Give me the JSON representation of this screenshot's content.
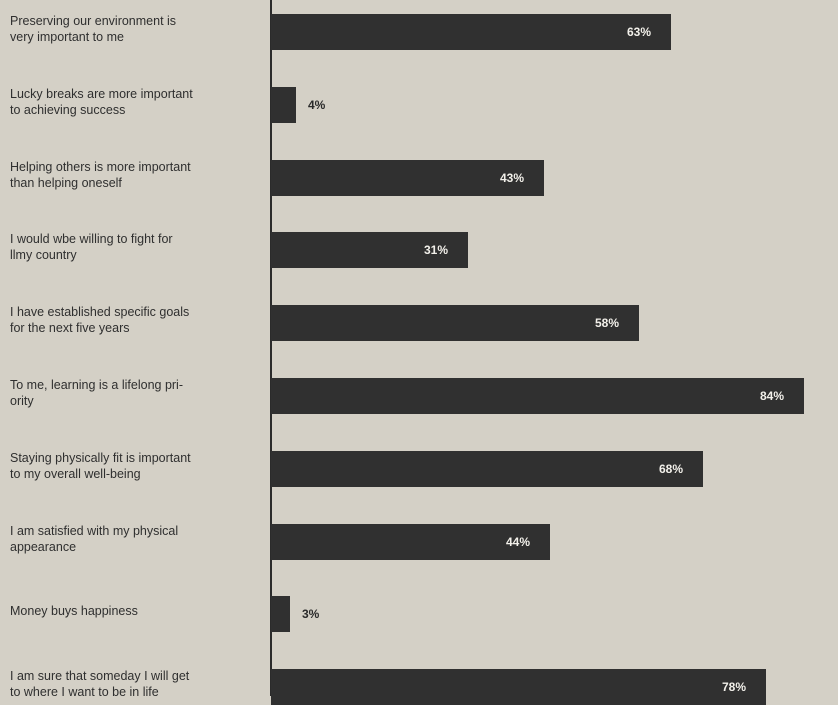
{
  "chart_data": {
    "type": "bar",
    "orientation": "horizontal",
    "unit": "%",
    "xlim": [
      0,
      100
    ],
    "bar_color": "#303030",
    "background_color": "#d4d0c6",
    "categories": [
      "Preserving our environment is very important to me",
      "Lucky breaks are more important to achieving success",
      "Helping others is more important than helping oneself",
      "I would wbe willing to fight for llmy country",
      "I have established specific goals for the next five years",
      "To me, learning is a lifelong pri-ority",
      "Staying physically fit is important to my overall well-being",
      "I am satisfied with my physical appearance",
      "Money buys happiness",
      "I am sure that someday I will get to where I want to be in life"
    ],
    "label_lines": [
      [
        "Preserving our environment is",
        "very important to me"
      ],
      [
        "Lucky breaks are more important",
        "to achieving success"
      ],
      [
        "Helping others is more important",
        "than helping oneself"
      ],
      [
        "I would wbe willing to fight for",
        "llmy country"
      ],
      [
        "I have established specific goals",
        "for the next five years"
      ],
      [
        "To me, learning is a lifelong pri-",
        "ority"
      ],
      [
        "Staying physically fit is important",
        "to my overall well-being"
      ],
      [
        "I am satisfied with my physical",
        "appearance"
      ],
      [
        "Money buys happiness"
      ],
      [
        "I am sure that someday I will get",
        "to where I want to be in life"
      ]
    ],
    "values": [
      63,
      4,
      43,
      31,
      58,
      84,
      68,
      44,
      3,
      78
    ],
    "value_labels": [
      "63%",
      "4%",
      "43%",
      "31%",
      "58%",
      "84%",
      "68%",
      "44%",
      "3%",
      "78%"
    ]
  }
}
